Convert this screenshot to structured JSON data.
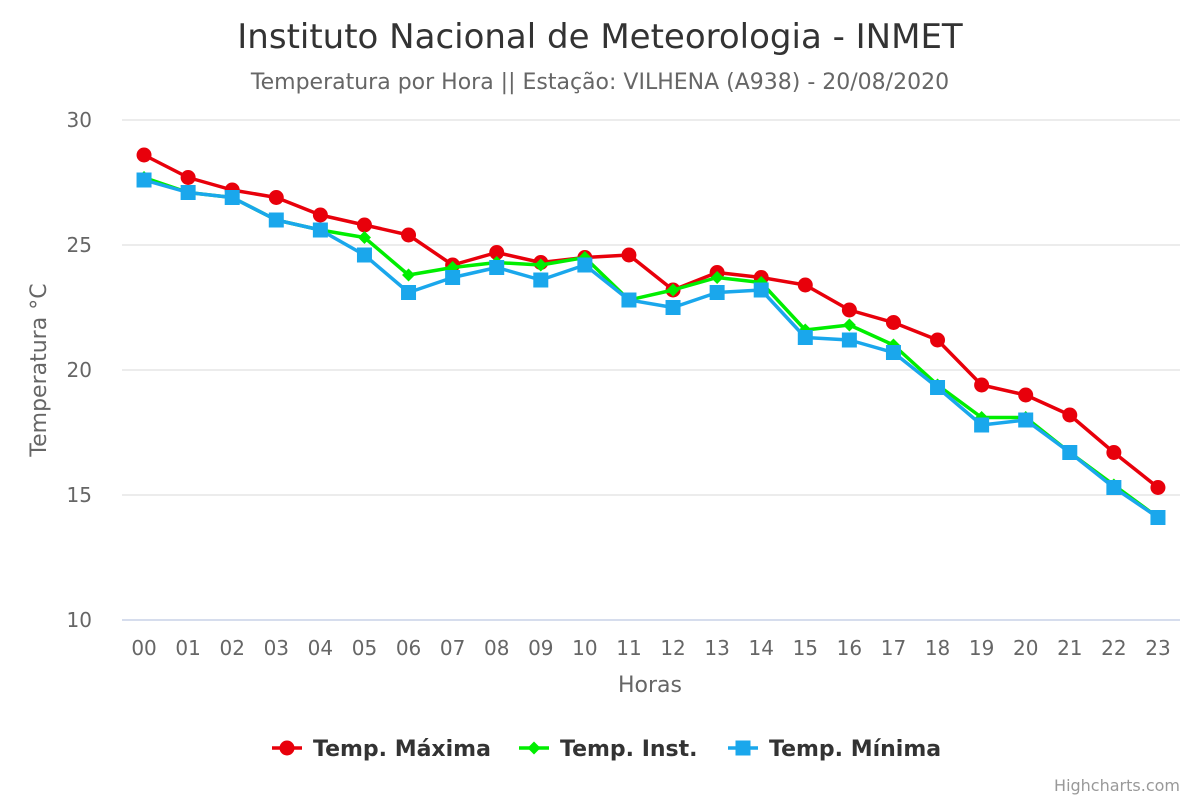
{
  "chart_data": {
    "type": "line",
    "title": "Instituto Nacional de Meteorologia - INMET",
    "subtitle": "Temperatura por Hora || Estação: VILHENA (A938) - 20/08/2020",
    "xlabel": "Horas",
    "ylabel": "Temperatura °C",
    "ylim": [
      10,
      30
    ],
    "yticks": [
      10,
      15,
      20,
      25,
      30
    ],
    "grid": true,
    "legend_position": "bottom-center",
    "categories": [
      "00",
      "01",
      "02",
      "03",
      "04",
      "05",
      "06",
      "07",
      "08",
      "09",
      "10",
      "11",
      "12",
      "13",
      "14",
      "15",
      "16",
      "17",
      "18",
      "19",
      "20",
      "21",
      "22",
      "23"
    ],
    "series": [
      {
        "name": "Temp. Máxima",
        "color": "#e8000b",
        "marker": "circle",
        "values": [
          28.6,
          27.7,
          27.2,
          26.9,
          26.2,
          25.8,
          25.4,
          24.2,
          24.7,
          24.3,
          24.5,
          24.6,
          23.2,
          23.9,
          23.7,
          23.4,
          22.4,
          21.9,
          21.2,
          19.4,
          19.0,
          18.2,
          16.7,
          15.3
        ]
      },
      {
        "name": "Temp. Inst.",
        "color": "#00ee00",
        "marker": "diamond",
        "values": [
          27.7,
          27.1,
          26.9,
          26.0,
          25.6,
          25.3,
          23.8,
          24.1,
          24.3,
          24.2,
          24.5,
          22.8,
          23.2,
          23.7,
          23.5,
          21.6,
          21.8,
          21.0,
          19.4,
          18.1,
          18.1,
          16.7,
          15.4,
          14.1
        ]
      },
      {
        "name": "Temp. Mínima",
        "color": "#1aa7ec",
        "marker": "square",
        "values": [
          27.6,
          27.1,
          26.9,
          26.0,
          25.6,
          24.6,
          23.1,
          23.7,
          24.1,
          23.6,
          24.2,
          22.8,
          22.5,
          23.1,
          23.2,
          21.3,
          21.2,
          20.7,
          19.3,
          17.8,
          18.0,
          16.7,
          15.3,
          14.1
        ]
      }
    ]
  },
  "credits": "Highcharts.com"
}
